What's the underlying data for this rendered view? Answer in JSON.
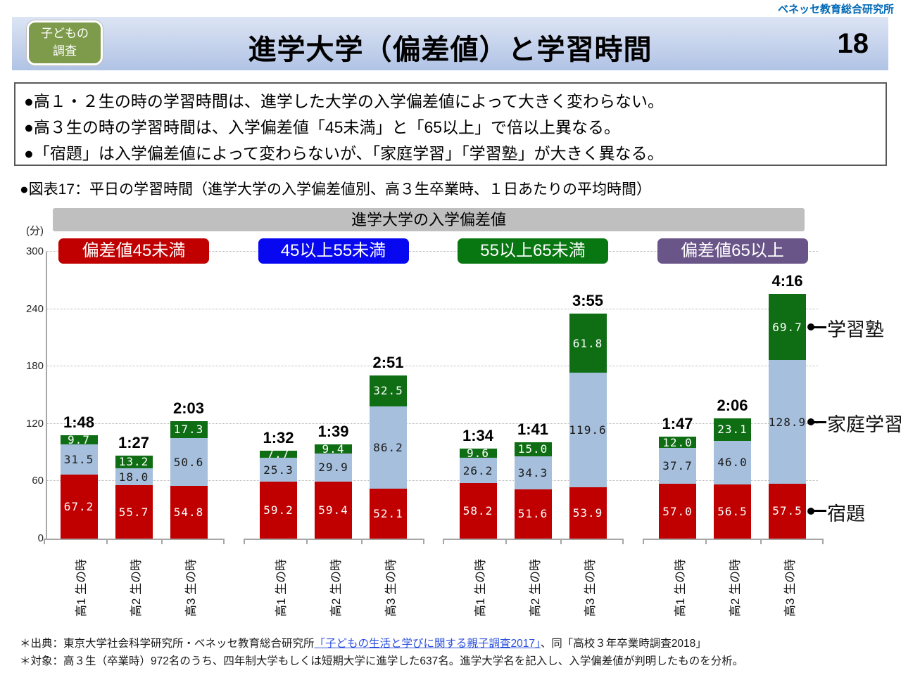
{
  "brand": "ベネッセ教育総合研究所",
  "header": {
    "badge_line1": "子どもの",
    "badge_line2": "調査",
    "title": "進学大学（偏差値）と学習時間",
    "page_number": "18"
  },
  "summary": {
    "bullets": [
      "●高１・２生の時の学習時間は、進学した大学の入学偏差値によって大きく変わらない。",
      "●高３生の時の学習時間は、入学偏差値「45未満」と「65以上」で倍以上異なる。",
      "●「宿題」は入学偏差値によって変わらないが、「家庭学習」「学習塾」が大きく異なる。"
    ]
  },
  "figure": {
    "caption": "●図表17：平日の学習時間（進学大学の入学偏差値別、高３生卒業時、１日あたりの平均時間）"
  },
  "chart_data": {
    "type": "bar",
    "stacked": true,
    "banner": "進学大学の入学偏差値",
    "unit": "(分)",
    "ylim": [
      0,
      300
    ],
    "yticks": [
      0,
      60,
      120,
      180,
      240,
      300
    ],
    "grid": "dotted horizontal",
    "legend_position": "right callouts",
    "series": [
      {
        "name": "宿題",
        "color": "#c00000",
        "label_color": "#ffffff"
      },
      {
        "name": "家庭学習",
        "color": "#a5bfdc",
        "label_color": "#1a1a1a"
      },
      {
        "name": "学習塾",
        "color": "#0f6e14",
        "label_color": "#ffffff"
      }
    ],
    "group_labels": [
      {
        "text": "偏差値45未満",
        "color": "#c00000"
      },
      {
        "text": "45以上55未満",
        "color": "#0808f0"
      },
      {
        "text": "55以上65未満",
        "color": "#087711"
      },
      {
        "text": "偏差値65以上",
        "color": "#6a5589"
      }
    ],
    "x_labels": [
      "高1 生の時",
      "高2 生の時",
      "高3 生の時"
    ],
    "groups": [
      {
        "bars": [
          {
            "total": "1:48",
            "values": [
              67.2,
              31.5,
              9.7
            ]
          },
          {
            "total": "1:27",
            "values": [
              55.7,
              18.0,
              13.2
            ]
          },
          {
            "total": "2:03",
            "values": [
              54.8,
              50.6,
              17.3
            ]
          }
        ]
      },
      {
        "bars": [
          {
            "total": "1:32",
            "values": [
              59.2,
              25.3,
              7.7
            ]
          },
          {
            "total": "1:39",
            "values": [
              59.4,
              29.9,
              9.4
            ]
          },
          {
            "total": "2:51",
            "values": [
              52.1,
              86.2,
              32.5
            ]
          }
        ]
      },
      {
        "bars": [
          {
            "total": "1:34",
            "values": [
              58.2,
              26.2,
              9.6
            ]
          },
          {
            "total": "1:41",
            "values": [
              51.6,
              34.3,
              15.0
            ]
          },
          {
            "total": "3:55",
            "values": [
              53.9,
              119.6,
              61.8
            ]
          }
        ]
      },
      {
        "bars": [
          {
            "total": "1:47",
            "values": [
              57.0,
              37.7,
              12.0
            ]
          },
          {
            "total": "2:06",
            "values": [
              56.5,
              46.0,
              23.1
            ]
          },
          {
            "total": "4:16",
            "values": [
              57.5,
              128.9,
              69.7
            ]
          }
        ]
      }
    ],
    "legend": [
      "学習塾",
      "家庭学習",
      "宿題"
    ]
  },
  "footnotes": {
    "source_prefix": "＊出典：東京大学社会科学研究所・ベネッセ教育総合研究所",
    "source_link": "「子どもの生活と学びに関する親子調査2017」",
    "source_suffix": "、同「高校３年卒業時調査2018」",
    "subjects": "＊対象：高３生（卒業時）972名のうち、四年制大学もしくは短期大学に進学した637名。進学大学名を記入し、入学偏差値が判明したものを分析。"
  }
}
